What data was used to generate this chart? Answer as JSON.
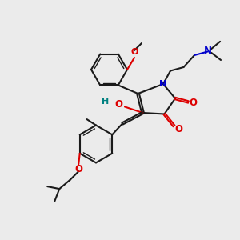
{
  "bg_color": "#ebebeb",
  "bond_color": "#1a1a1a",
  "oxygen_color": "#dd0000",
  "nitrogen_color": "#0000cc",
  "ho_color": "#008080",
  "figsize": [
    3.0,
    3.0
  ],
  "dpi": 100,
  "xlim": [
    0,
    10
  ],
  "ylim": [
    0,
    10
  ]
}
